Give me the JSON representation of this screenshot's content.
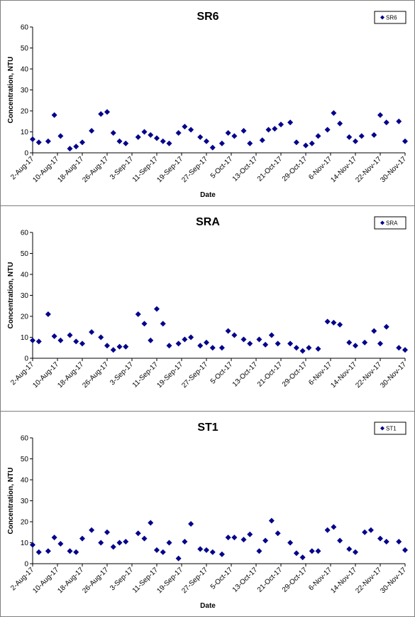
{
  "chart_data": [
    {
      "type": "scatter",
      "title": "SR6",
      "xlabel": "Date",
      "ylabel": "Concentration, NTU",
      "ylim": [
        0,
        60
      ],
      "yticks": [
        0,
        10,
        20,
        30,
        40,
        50,
        60
      ],
      "xticks": [
        "2-Aug-17",
        "10-Aug-17",
        "18-Aug-17",
        "26-Aug-17",
        "3-Sep-17",
        "11-Sep-17",
        "19-Sep-17",
        "27-Sep-17",
        "5-Oct-17",
        "13-Oct-17",
        "21-Oct-17",
        "29-Oct-17",
        "6-Nov-17",
        "14-Nov-17",
        "22-Nov-17",
        "30-Nov-17"
      ],
      "legend_position": "top-right",
      "marker": "diamond",
      "color": "#00008B",
      "grid": false,
      "series": [
        {
          "name": "SR6",
          "x": [
            "2017-08-02",
            "2017-08-04",
            "2017-08-07",
            "2017-08-09",
            "2017-08-11",
            "2017-08-14",
            "2017-08-16",
            "2017-08-18",
            "2017-08-21",
            "2017-08-24",
            "2017-08-26",
            "2017-08-28",
            "2017-08-30",
            "2017-09-01",
            "2017-09-05",
            "2017-09-07",
            "2017-09-09",
            "2017-09-11",
            "2017-09-13",
            "2017-09-15",
            "2017-09-18",
            "2017-09-20",
            "2017-09-22",
            "2017-09-25",
            "2017-09-27",
            "2017-09-29",
            "2017-10-02",
            "2017-10-04",
            "2017-10-06",
            "2017-10-09",
            "2017-10-11",
            "2017-10-15",
            "2017-10-17",
            "2017-10-19",
            "2017-10-21",
            "2017-10-24",
            "2017-10-26",
            "2017-10-29",
            "2017-10-31",
            "2017-11-02",
            "2017-11-05",
            "2017-11-07",
            "2017-11-09",
            "2017-11-12",
            "2017-11-14",
            "2017-11-16",
            "2017-11-20",
            "2017-11-22",
            "2017-11-24",
            "2017-11-28",
            "2017-11-30"
          ],
          "y": [
            6.5,
            5,
            5.5,
            18,
            8,
            2,
            3,
            5,
            10.5,
            18.5,
            19.5,
            9.5,
            5.5,
            4.5,
            7.5,
            10,
            8.5,
            7,
            5.5,
            4.5,
            9.5,
            12.5,
            11,
            7.5,
            5.5,
            2.5,
            4.5,
            9.5,
            8,
            10.5,
            4.5,
            6,
            11,
            11.5,
            13.5,
            14.5,
            5,
            3.5,
            4.5,
            8,
            11,
            19,
            14,
            7.5,
            5.5,
            8,
            8.5,
            18,
            14.5,
            15,
            5.5
          ]
        }
      ]
    },
    {
      "type": "scatter",
      "title": "SRA",
      "xlabel": "",
      "ylabel": "Concentration, NTU",
      "ylim": [
        0,
        60
      ],
      "yticks": [
        0,
        10,
        20,
        30,
        40,
        50,
        60
      ],
      "xticks": [
        "2-Aug-17",
        "10-Aug-17",
        "18-Aug-17",
        "26-Aug-17",
        "3-Sep-17",
        "11-Sep-17",
        "19-Sep-17",
        "27-Sep-17",
        "5-Oct-17",
        "13-Oct-17",
        "21-Oct-17",
        "29-Oct-17",
        "6-Nov-17",
        "14-Nov-17",
        "22-Nov-17",
        "30-Nov-17"
      ],
      "legend_position": "top-right",
      "marker": "diamond",
      "color": "#00008B",
      "grid": false,
      "series": [
        {
          "name": "SRA",
          "x": [
            "2017-08-02",
            "2017-08-04",
            "2017-08-07",
            "2017-08-09",
            "2017-08-11",
            "2017-08-14",
            "2017-08-16",
            "2017-08-18",
            "2017-08-21",
            "2017-08-24",
            "2017-08-26",
            "2017-08-28",
            "2017-08-30",
            "2017-09-01",
            "2017-09-05",
            "2017-09-07",
            "2017-09-09",
            "2017-09-11",
            "2017-09-13",
            "2017-09-15",
            "2017-09-18",
            "2017-09-20",
            "2017-09-22",
            "2017-09-25",
            "2017-09-27",
            "2017-09-29",
            "2017-10-02",
            "2017-10-04",
            "2017-10-06",
            "2017-10-09",
            "2017-10-11",
            "2017-10-14",
            "2017-10-16",
            "2017-10-18",
            "2017-10-20",
            "2017-10-24",
            "2017-10-26",
            "2017-10-28",
            "2017-10-30",
            "2017-11-02",
            "2017-11-05",
            "2017-11-07",
            "2017-11-09",
            "2017-11-12",
            "2017-11-14",
            "2017-11-17",
            "2017-11-20",
            "2017-11-22",
            "2017-11-24",
            "2017-11-28",
            "2017-11-30"
          ],
          "y": [
            8.5,
            8,
            21,
            10.5,
            8.5,
            11,
            8,
            7,
            12.5,
            10,
            6,
            4,
            5.5,
            5.5,
            21,
            16.5,
            8.5,
            23.5,
            16.5,
            6,
            7,
            9,
            10,
            6,
            7.5,
            5,
            5,
            13,
            11,
            9,
            7,
            9,
            6.5,
            11,
            7,
            7,
            5,
            3.5,
            5,
            4.5,
            17.5,
            17,
            16,
            7.5,
            6,
            7.5,
            13,
            7,
            15,
            5,
            4
          ]
        }
      ]
    },
    {
      "type": "scatter",
      "title": "ST1",
      "xlabel": "Date",
      "ylabel": "Concentration, NTU",
      "ylim": [
        0,
        60
      ],
      "yticks": [
        0,
        10,
        20,
        30,
        40,
        50,
        60
      ],
      "xticks": [
        "2-Aug-17",
        "10-Aug-17",
        "18-Aug-17",
        "26-Aug-17",
        "3-Sep-17",
        "11-Sep-17",
        "19-Sep-17",
        "27-Sep-17",
        "5-Oct-17",
        "13-Oct-17",
        "21-Oct-17",
        "29-Oct-17",
        "6-Nov-17",
        "14-Nov-17",
        "22-Nov-17",
        "30-Nov-17"
      ],
      "legend_position": "top-right",
      "marker": "diamond",
      "color": "#00008B",
      "grid": false,
      "series": [
        {
          "name": "ST1",
          "x": [
            "2017-08-02",
            "2017-08-04",
            "2017-08-07",
            "2017-08-09",
            "2017-08-11",
            "2017-08-14",
            "2017-08-16",
            "2017-08-18",
            "2017-08-21",
            "2017-08-24",
            "2017-08-26",
            "2017-08-28",
            "2017-08-30",
            "2017-09-01",
            "2017-09-05",
            "2017-09-07",
            "2017-09-09",
            "2017-09-11",
            "2017-09-13",
            "2017-09-15",
            "2017-09-18",
            "2017-09-20",
            "2017-09-22",
            "2017-09-25",
            "2017-09-27",
            "2017-09-29",
            "2017-10-02",
            "2017-10-04",
            "2017-10-06",
            "2017-10-09",
            "2017-10-11",
            "2017-10-14",
            "2017-10-16",
            "2017-10-18",
            "2017-10-20",
            "2017-10-24",
            "2017-10-26",
            "2017-10-28",
            "2017-10-31",
            "2017-11-02",
            "2017-11-05",
            "2017-11-07",
            "2017-11-09",
            "2017-11-12",
            "2017-11-14",
            "2017-11-17",
            "2017-11-19",
            "2017-11-22",
            "2017-11-24",
            "2017-11-28",
            "2017-11-30"
          ],
          "y": [
            9,
            5.5,
            6,
            12.5,
            9.5,
            6,
            5.5,
            12,
            16,
            10,
            15,
            8,
            10,
            10.5,
            14.5,
            12,
            19.5,
            6.5,
            5.5,
            10,
            2.5,
            10.5,
            19,
            7,
            6.5,
            5.5,
            4.5,
            12.5,
            12.5,
            11.5,
            14,
            6,
            11,
            20.5,
            14.5,
            10,
            5,
            3,
            6,
            6,
            16,
            17.5,
            11,
            7,
            5.5,
            15,
            16,
            12,
            10.5,
            10.5,
            6.5
          ]
        }
      ]
    }
  ]
}
